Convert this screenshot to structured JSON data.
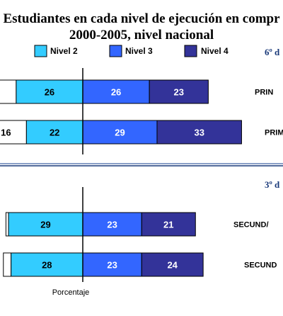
{
  "chart_data": {
    "type": "bar",
    "orientation": "horizontal-stacked",
    "title_line1": "Estudiantes en cada nivel de ejecución en compr",
    "title_line2": "2000-2005, nivel nacional",
    "xlabel": "Porcentaje",
    "legend": [
      {
        "name": "Nivel 2",
        "color": "#33ccff"
      },
      {
        "name": "Nivel 3",
        "color": "#3366ff"
      },
      {
        "name": "Nivel 4",
        "color": "#333399"
      }
    ],
    "sections": [
      {
        "label": "6º d",
        "rows": [
          {
            "label": "PRIN",
            "values": {
              "Nivel 1": 12,
              "Nivel 2": 26,
              "Nivel 3": 26,
              "Nivel 4": 23
            },
            "labels": {
              "Nivel 1": "",
              "Nivel 2": "26",
              "Nivel 3": "26",
              "Nivel 4": "23"
            }
          },
          {
            "label": "PRIM",
            "values": {
              "Nivel 1": 16,
              "Nivel 2": 22,
              "Nivel 3": 29,
              "Nivel 4": 33
            },
            "labels": {
              "Nivel 1": "16",
              "Nivel 2": "22",
              "Nivel 3": "29",
              "Nivel 4": "33"
            }
          }
        ]
      },
      {
        "label": "3º d",
        "rows": [
          {
            "label": "SECUND/",
            "values": {
              "Nivel 1": 1,
              "Nivel 2": 29,
              "Nivel 3": 23,
              "Nivel 4": 21
            },
            "labels": {
              "Nivel 1": "",
              "Nivel 2": "29",
              "Nivel 3": "23",
              "Nivel 4": "21"
            }
          },
          {
            "label": "SECUND",
            "values": {
              "Nivel 1": 3,
              "Nivel 2": 28,
              "Nivel 3": 23,
              "Nivel 4": 24
            },
            "labels": {
              "Nivel 1": "",
              "Nivel 2": "28",
              "Nivel 3": "23",
              "Nivel 4": "24"
            }
          }
        ]
      }
    ]
  }
}
